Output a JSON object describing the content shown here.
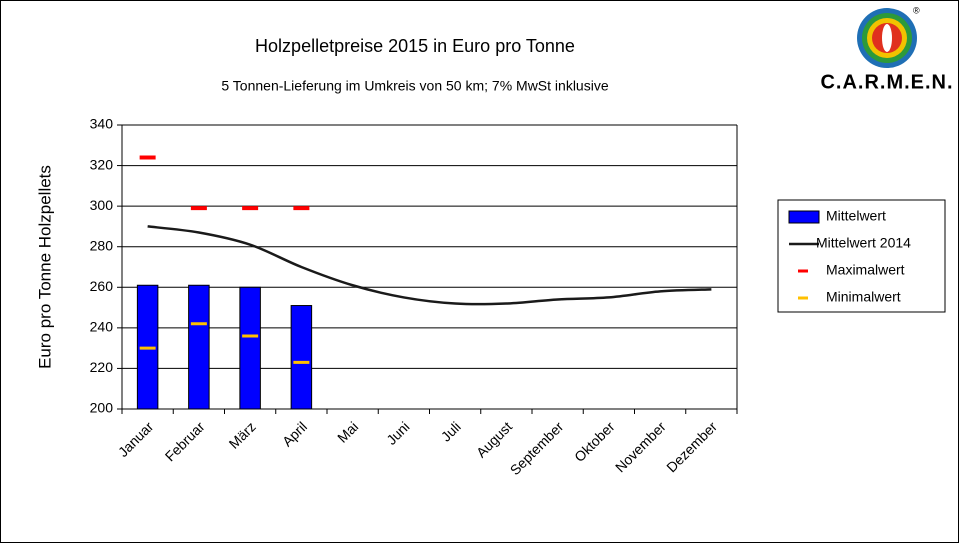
{
  "chart_data": {
    "type": "bar",
    "title": "Holzpelletpreise 2015 in Euro pro Tonne",
    "subtitle": "5 Tonnen-Lieferung im Umkreis von 50 km; 7% MwSt inklusive",
    "y_label": "Euro pro Tonne Holzpellets",
    "brand": "C.A.R.M.E.N.",
    "brand_mark": "®",
    "categories": [
      "Januar",
      "Februar",
      "März",
      "April",
      "Mai",
      "Juni",
      "Juli",
      "August",
      "September",
      "Oktober",
      "November",
      "Dezember"
    ],
    "series": [
      {
        "name": "Mittelwert",
        "type": "bar",
        "color": "#0000ff",
        "values": [
          261,
          261,
          260,
          251,
          null,
          null,
          null,
          null,
          null,
          null,
          null,
          null
        ]
      },
      {
        "name": "Mittelwert 2014",
        "type": "line",
        "color": "#1a1a1a",
        "values": [
          290,
          287,
          281,
          270,
          261,
          255,
          252,
          252,
          254,
          255,
          258,
          259
        ]
      },
      {
        "name": "Maximalwert",
        "type": "dash",
        "color": "#ff0000",
        "values": [
          324,
          299,
          299,
          299,
          null,
          null,
          null,
          null,
          null,
          null,
          null,
          null
        ]
      },
      {
        "name": "Minimalwert",
        "type": "dash",
        "color": "#ffc000",
        "values": [
          230,
          242,
          236,
          223,
          null,
          null,
          null,
          null,
          null,
          null,
          null,
          null
        ]
      }
    ],
    "ylim": [
      200,
      340
    ],
    "yticks": [
      200,
      220,
      240,
      260,
      280,
      300,
      320,
      340
    ],
    "grid": true,
    "legend": "right"
  }
}
